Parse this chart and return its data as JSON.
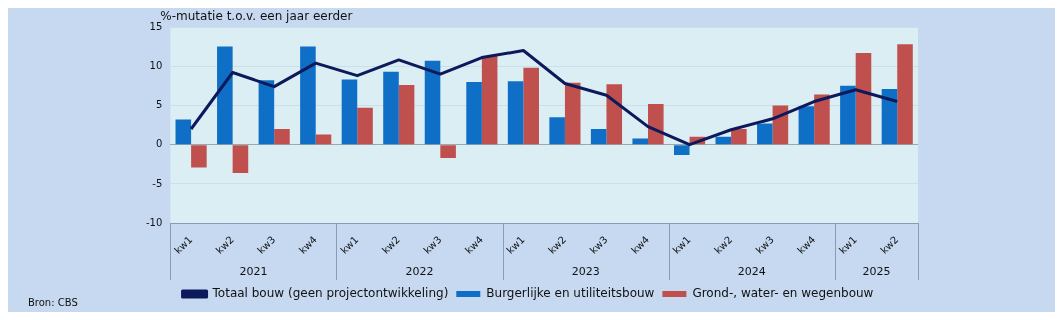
{
  "chart_data": {
    "type": "bar",
    "title": "%-mutatie t.o.v. een jaar eerder",
    "categories": [
      "kw1",
      "kw2",
      "kw3",
      "kw4",
      "kw1",
      "kw2",
      "kw3",
      "kw4",
      "kw1",
      "kw2",
      "kw3",
      "kw4",
      "kw1",
      "kw2",
      "kw3",
      "kw4",
      "kw1",
      "kw2"
    ],
    "series": [
      {
        "name": "Burgerlijke en utiliteitsbouw",
        "color": "#0f6fc6",
        "values": [
          3.2,
          12.5,
          8.2,
          12.5,
          8.3,
          9.3,
          10.7,
          8.0,
          8.1,
          3.5,
          2.0,
          0.8,
          -1.3,
          1.0,
          2.7,
          4.9,
          7.5,
          7.1
        ]
      },
      {
        "name": "Grond-, water- en wegenbouw",
        "color": "#c0504d",
        "values": [
          -2.9,
          -3.6,
          2.0,
          1.3,
          4.7,
          7.6,
          -1.7,
          11.3,
          9.8,
          7.9,
          7.7,
          5.2,
          1.0,
          2.0,
          5.0,
          6.4,
          11.7,
          12.8
        ]
      },
      {
        "name": "Totaal bouw (geen projectontwikkeling)",
        "type": "line",
        "color": "#0c1a5b",
        "values": [
          2.0,
          9.2,
          7.4,
          10.4,
          8.8,
          10.8,
          9.0,
          11.1,
          12.0,
          7.8,
          6.3,
          2.3,
          0.0,
          1.9,
          3.3,
          5.5,
          7.0,
          5.5
        ]
      }
    ],
    "ylim": [
      -10,
      15
    ],
    "yticks": [
      -10,
      -5,
      0,
      5,
      10,
      15
    ],
    "grid": "y",
    "legend": "bottom",
    "marker": "none",
    "annotations": [
      "Bron: CBS",
      "2021",
      "2022",
      "2023",
      "2024",
      "2025"
    ]
  }
}
